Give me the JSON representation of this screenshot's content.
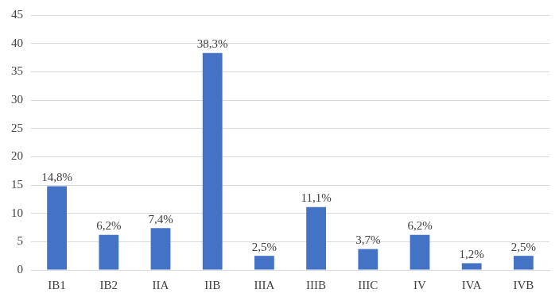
{
  "chart_data": {
    "type": "bar",
    "categories": [
      "IB1",
      "IB2",
      "IIA",
      "IIB",
      "IIIA",
      "IIIB",
      "IIIC",
      "IV",
      "IVA",
      "IVB"
    ],
    "values": [
      14.8,
      6.2,
      7.4,
      38.3,
      2.5,
      11.1,
      3.7,
      6.2,
      1.2,
      2.5
    ],
    "value_labels": [
      "14,8%",
      "6,2%",
      "7,4%",
      "38,3%",
      "2,5%",
      "11,1%",
      "3,7%",
      "6,2%",
      "1,2%",
      "2,5%"
    ],
    "data_labels": true,
    "color": "#4472c4",
    "ylim": [
      0,
      45
    ],
    "yticks": [
      0,
      5,
      10,
      15,
      20,
      25,
      30,
      35,
      40,
      45
    ],
    "grid": true
  }
}
